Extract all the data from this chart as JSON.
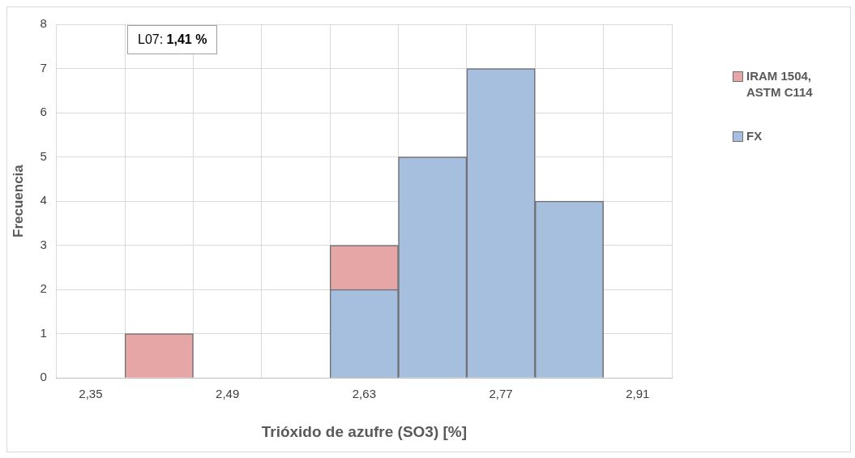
{
  "chart_data": {
    "type": "bar",
    "xlabel": "Trióxido de azufre (SO3) [%]",
    "ylabel": "Frecuencia",
    "categories": [
      "2,35",
      null,
      "2,49",
      null,
      "2,63",
      null,
      "2,77",
      null,
      "2,91"
    ],
    "series": [
      {
        "name": "IRAM 1504, ASTM C114",
        "color": "#e6a6a6",
        "values": [
          0,
          1,
          0,
          0,
          3,
          0,
          0,
          0,
          0
        ]
      },
      {
        "name": "FX",
        "color": "#a7bfdf",
        "values": [
          0,
          0,
          0,
          0,
          2,
          5,
          7,
          4,
          0
        ]
      }
    ],
    "ylim": [
      0,
      8
    ],
    "yticks": [
      0,
      1,
      2,
      3,
      4,
      5,
      6,
      7,
      8
    ],
    "grid": true,
    "legend": "right",
    "annotations": [
      "L07: 1,41 %"
    ]
  }
}
